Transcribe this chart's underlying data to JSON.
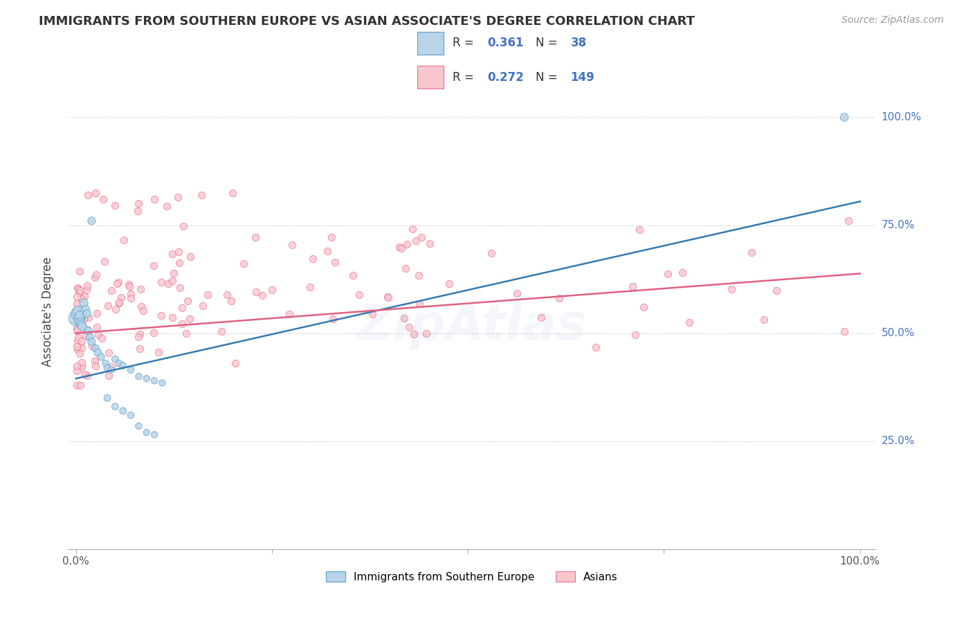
{
  "title": "IMMIGRANTS FROM SOUTHERN EUROPE VS ASIAN ASSOCIATE'S DEGREE CORRELATION CHART",
  "source": "Source: ZipAtlas.com",
  "ylabel": "Associate's Degree",
  "ytick_labels": [
    "25.0%",
    "50.0%",
    "75.0%",
    "100.0%"
  ],
  "ytick_positions": [
    0.25,
    0.5,
    0.75,
    1.0
  ],
  "legend_blue_r": "0.361",
  "legend_blue_n": "38",
  "legend_pink_r": "0.272",
  "legend_pink_n": "149",
  "legend_label_blue": "Immigrants from Southern Europe",
  "legend_label_pink": "Asians",
  "blue_fill_color": "#b8d4e8",
  "blue_edge_color": "#5a9ec9",
  "pink_fill_color": "#f9c6ce",
  "pink_edge_color": "#e87090",
  "blue_line_color": "#3579b1",
  "pink_line_color": "#e06080",
  "blue_legend_fill": "#b8d4e8",
  "blue_legend_edge": "#5a9ec9",
  "pink_legend_fill": "#f9c6ce",
  "pink_legend_edge": "#e87090",
  "ytick_color": "#4472c4",
  "watermark_color": "#4472c4",
  "background_color": "#ffffff",
  "grid_color": "#cccccc",
  "blue_line_start_y": 0.395,
  "blue_line_end_y": 0.805,
  "pink_line_start_y": 0.5,
  "pink_line_end_y": 0.638,
  "xlim_min": -0.01,
  "xlim_max": 1.02,
  "ylim_min": 0.0,
  "ylim_max": 1.1
}
